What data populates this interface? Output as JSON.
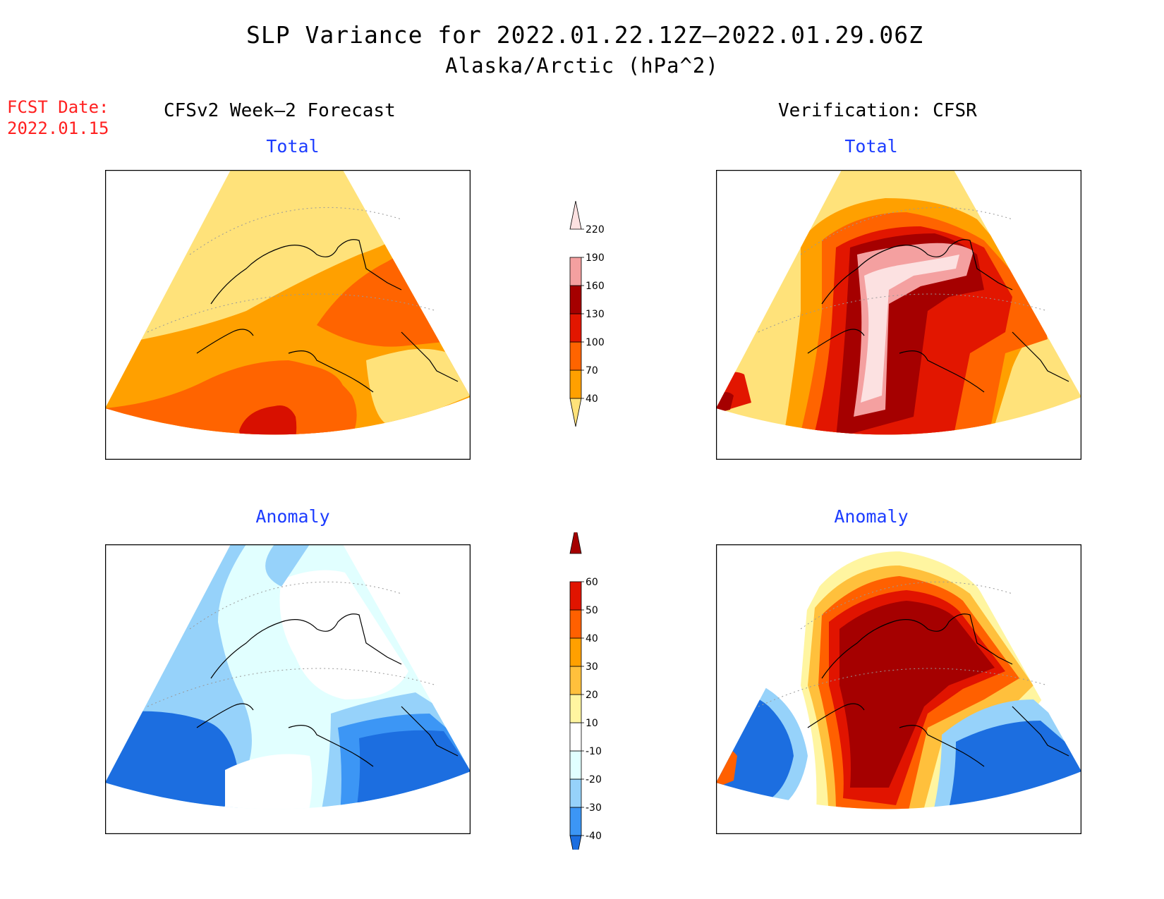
{
  "title": {
    "line1": "SLP Variance for 2022.01.22.12Z–2022.01.29.06Z",
    "line2": "Alaska/Arctic (hPa^2)"
  },
  "forecast_date": {
    "label": "FCST Date:",
    "value": "2022.01.15"
  },
  "left_column": {
    "heading": "CFSv2 Week–2 Forecast"
  },
  "right_column": {
    "heading": "Verification: CFSR"
  },
  "panels": {
    "forecast_total": {
      "subtitle": "Total"
    },
    "verification_total": {
      "subtitle": "Total"
    },
    "forecast_anomaly": {
      "subtitle": "Anomaly"
    },
    "verification_anomaly": {
      "subtitle": "Anomaly"
    }
  },
  "colorbars": {
    "total": {
      "ticks": [
        "40",
        "70",
        "100",
        "130",
        "160",
        "190",
        "220"
      ],
      "colors": [
        "#ffe27a",
        "#ffa000",
        "#ff6400",
        "#e21600",
        "#a50000",
        "#f4a0a0",
        "#fce1e1"
      ]
    },
    "anomaly": {
      "ticks": [
        "-40",
        "-30",
        "-20",
        "-10",
        "10",
        "20",
        "30",
        "40",
        "50",
        "60"
      ],
      "colors": [
        "#1c6ee0",
        "#3c96f5",
        "#96d2fa",
        "#e1ffff",
        "#ffffff",
        "#fff5a0",
        "#ffc03c",
        "#ffa000",
        "#ff6000",
        "#e11400",
        "#a50000"
      ]
    }
  },
  "colors": {
    "title_red": "#ff2020",
    "subtitle_blue": "#1c3cff"
  }
}
